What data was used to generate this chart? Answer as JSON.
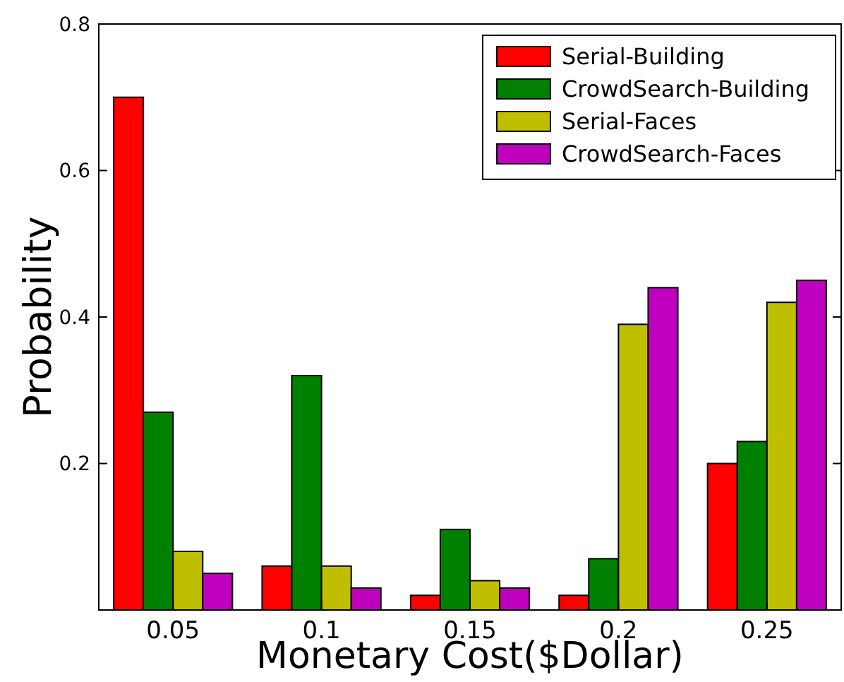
{
  "chart_data": {
    "type": "bar",
    "xlabel": "Monetary Cost($Dollar)",
    "ylabel": "Probability",
    "categories": [
      "0.05",
      "0.1",
      "0.15",
      "0.2",
      "0.25"
    ],
    "series": [
      {
        "name": "Serial-Building",
        "color": "#ff0000",
        "values": [
          0.7,
          0.06,
          0.02,
          0.02,
          0.2
        ]
      },
      {
        "name": "CrowdSearch-Building",
        "color": "#008000",
        "values": [
          0.27,
          0.32,
          0.11,
          0.07,
          0.23
        ]
      },
      {
        "name": "Serial-Faces",
        "color": "#bfbf00",
        "values": [
          0.08,
          0.06,
          0.04,
          0.39,
          0.42
        ]
      },
      {
        "name": "CrowdSearch-Faces",
        "color": "#bf00bf",
        "values": [
          0.05,
          0.03,
          0.03,
          0.44,
          0.45
        ]
      }
    ],
    "ylim": [
      0,
      0.8
    ],
    "yticks": [
      0.2,
      0.4,
      0.6,
      0.8
    ],
    "grid": false,
    "legend": "top right"
  }
}
